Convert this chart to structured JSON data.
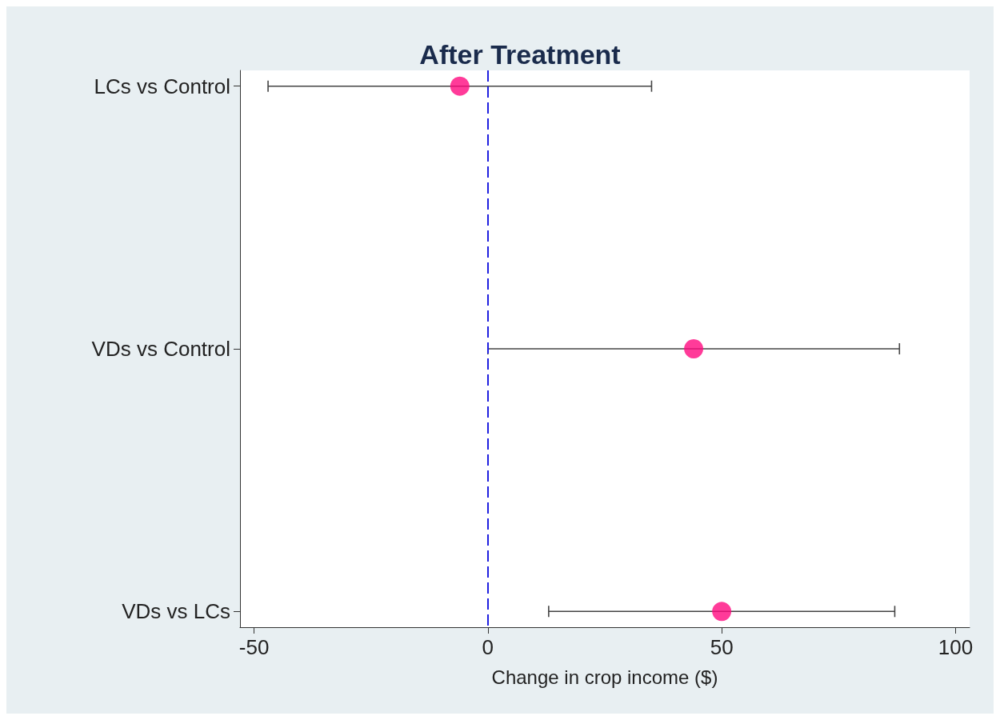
{
  "chart_data": {
    "type": "scatter",
    "orientation": "horizontal",
    "title": "After Treatment",
    "xlabel": "Change in crop income ($)",
    "categories": [
      "LCs vs Control",
      "VDs vs Control",
      "VDs vs LCs"
    ],
    "color": "#ff0a80",
    "values": [
      -6,
      44,
      50
    ],
    "errors": [
      [
        -47,
        35
      ],
      [
        0,
        88
      ],
      [
        13,
        87
      ]
    ],
    "xlim": [
      -53,
      103
    ],
    "xticks": [
      -50,
      0,
      50,
      100
    ],
    "ref_lines": [
      {
        "axis": "x",
        "value": 0,
        "color": "#1f1fe0",
        "line_style": "dashed"
      }
    ],
    "marker": "circle",
    "grid": false
  }
}
